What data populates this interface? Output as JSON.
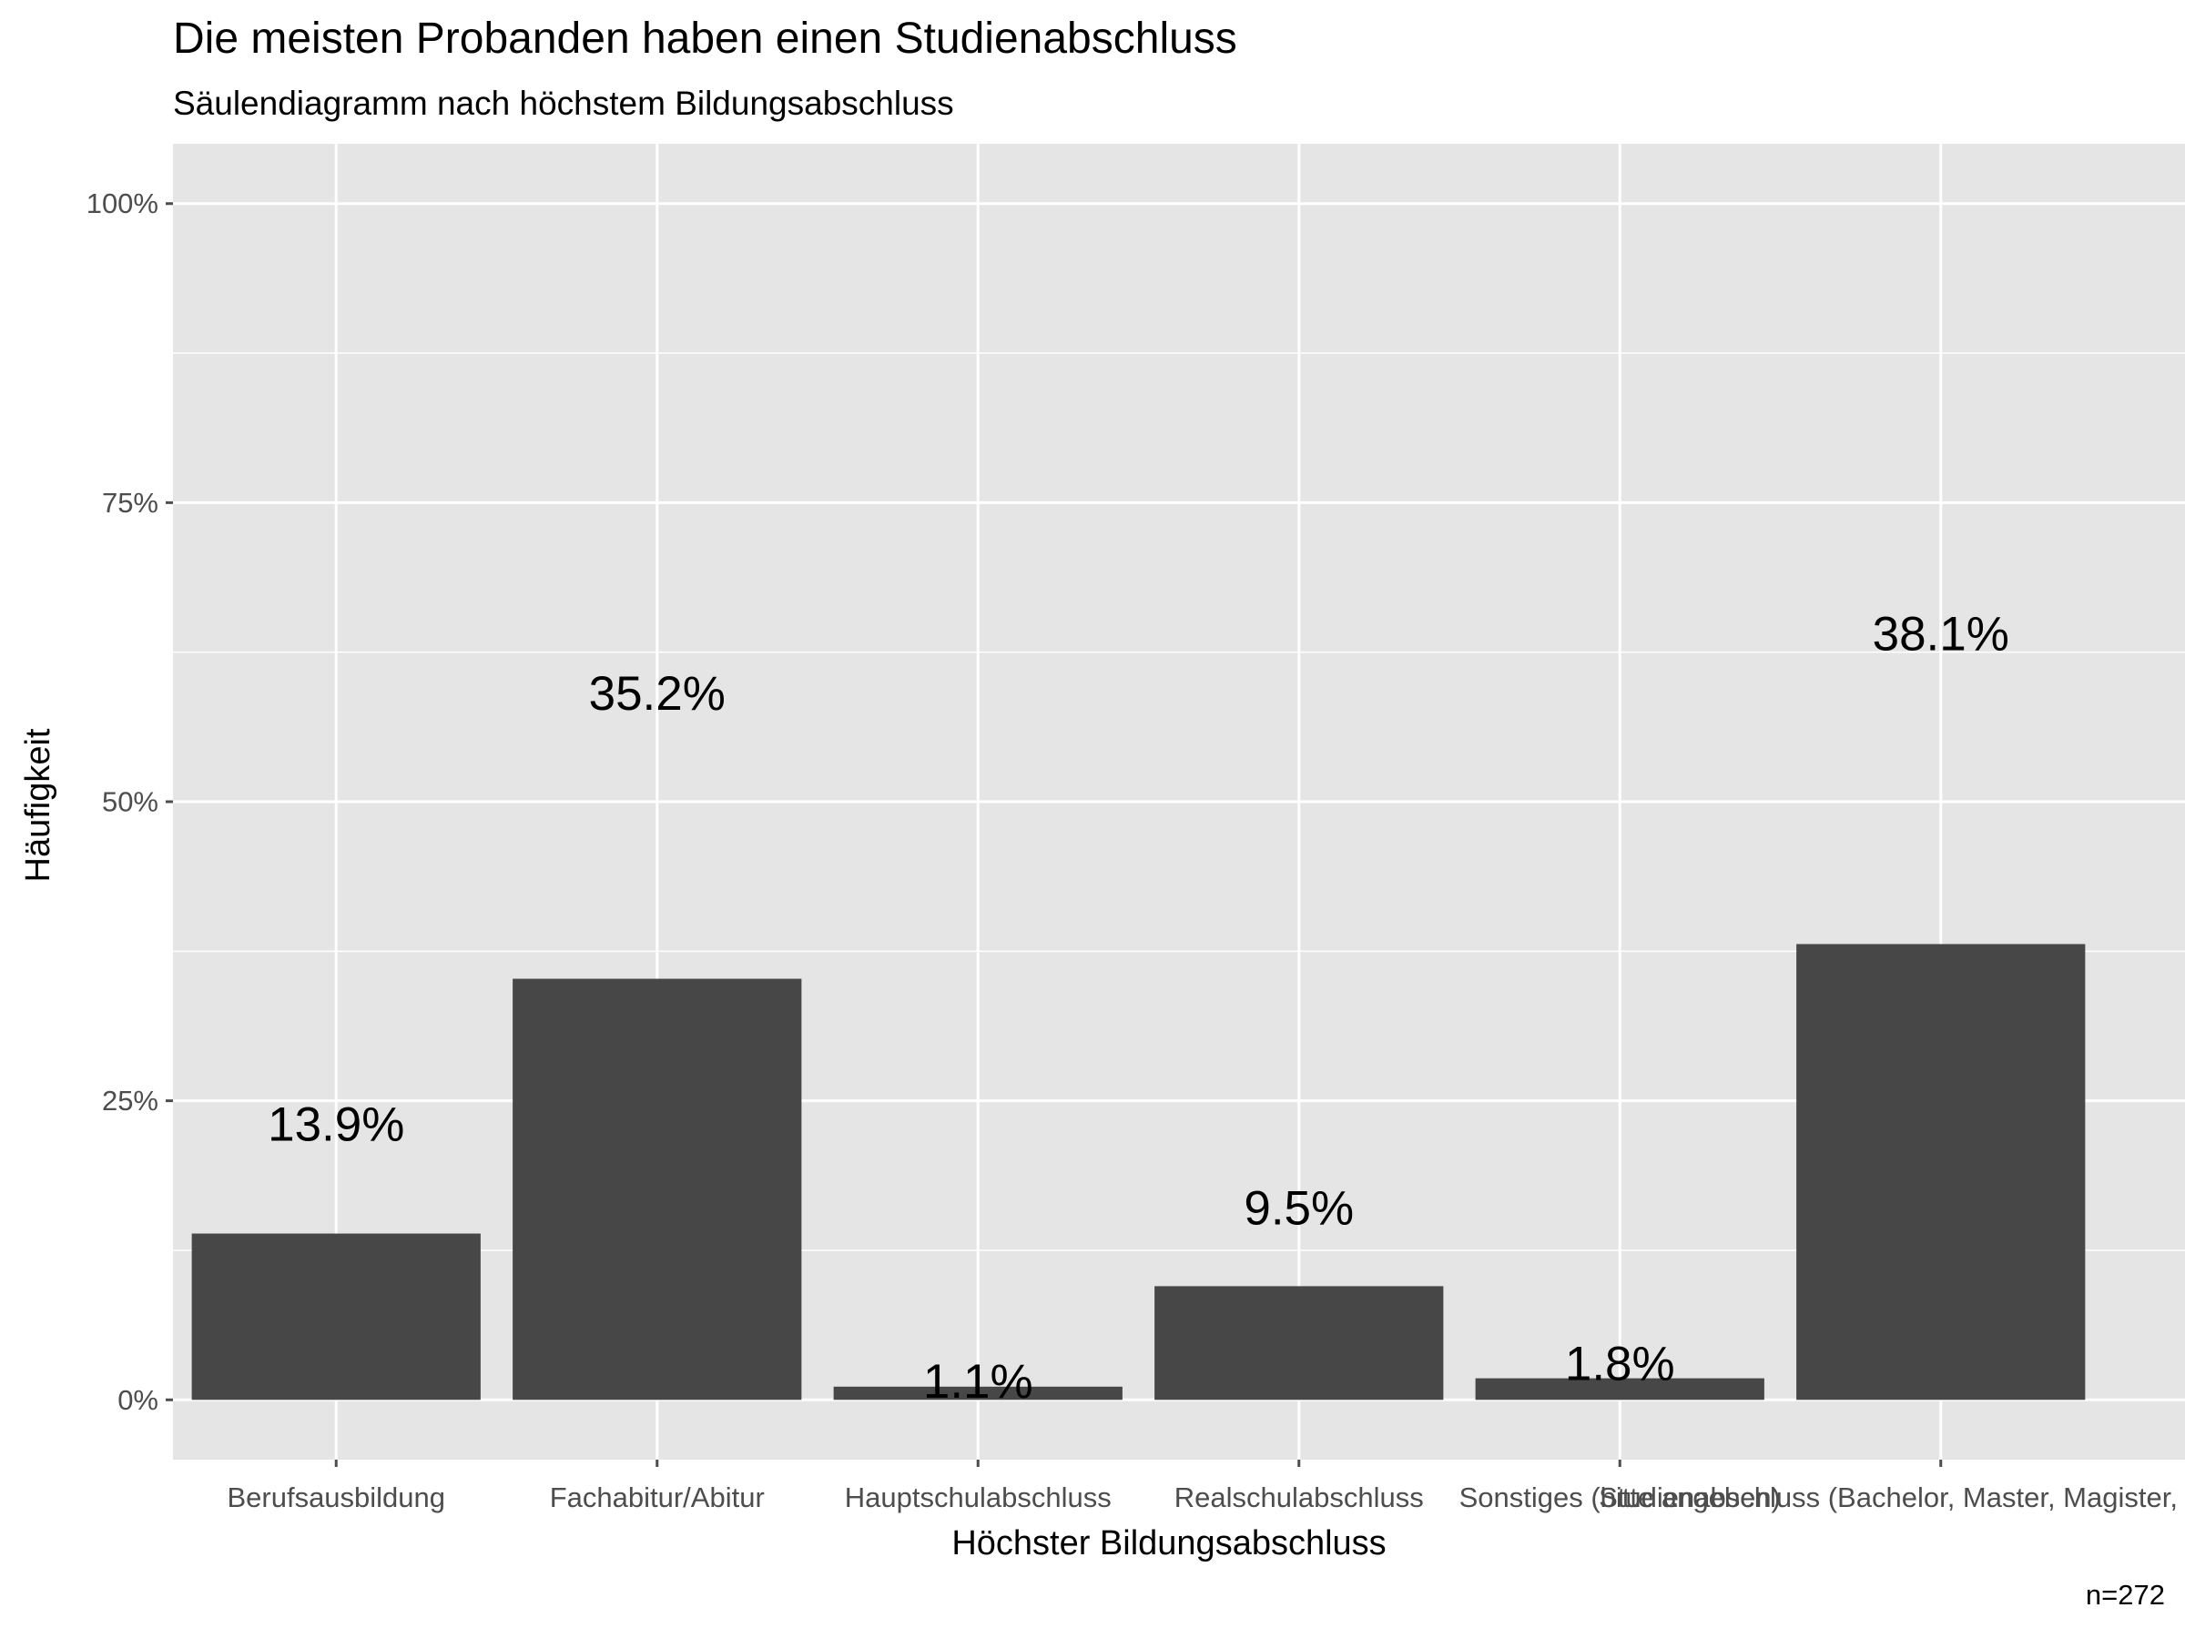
{
  "chart_data": {
    "type": "bar",
    "title": "Die meisten Probanden haben einen Studienabschluss",
    "subtitle": "Säulendiagramm nach höchstem Bildungsabschluss",
    "xlabel": "Höchster Bildungsabschluss",
    "ylabel": "Häufigkeit",
    "caption": "n=272",
    "categories": [
      "Berufsausbildung",
      "Fachabitur/Abitur",
      "Hauptschulabschluss",
      "Realschulabschluss",
      "Sonstiges (bitte angeben)",
      "Studienabschluss (Bachelor, Master, Magister, Diplom)"
    ],
    "values": [
      13.9,
      35.2,
      1.1,
      9.5,
      1.8,
      38.1
    ],
    "data_labels": [
      "13.9%",
      "35.2%",
      "1.1%",
      "9.5%",
      "1.8%",
      "38.1%"
    ],
    "label_values": [
      23,
      59,
      1.5,
      16,
      3,
      64
    ],
    "ylim": [
      -5,
      105
    ],
    "yticks": [
      0,
      25,
      50,
      75,
      100
    ],
    "ytick_labels": [
      "0%",
      "25%",
      "50%",
      "75%",
      "100%"
    ],
    "grid": true,
    "legend": "none",
    "colors": {
      "panel_background": "#e5e5e5",
      "grid": "#ffffff",
      "bar": "#474747",
      "tick": "#4d4d4d",
      "text": "#000000"
    }
  }
}
